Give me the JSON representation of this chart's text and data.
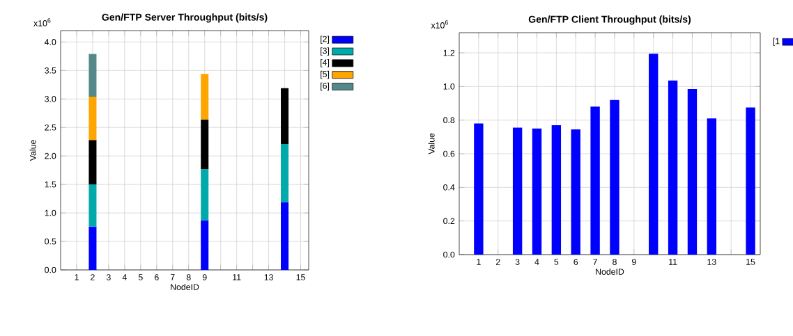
{
  "chart_data": [
    {
      "type": "bar",
      "title": "Gen/FTP Server   Throughput (bits/s)",
      "xlabel": "NodeID",
      "ylabel": "Value",
      "annotations": [
        "x10$^{6}$"
      ],
      "categories": [
        "1",
        "2",
        "3",
        "4",
        "5",
        "6",
        "7",
        "8",
        "9",
        null,
        "11",
        null,
        "13",
        null,
        "15"
      ],
      "stacked": true,
      "ylim": [
        0,
        4.2
      ],
      "yticks": [
        {
          "value": 0,
          "label": "0.0"
        },
        {
          "value": 0.5,
          "label": "0.5"
        },
        {
          "value": 1,
          "label": "1.0"
        },
        {
          "value": 1.5,
          "label": "1.5"
        },
        {
          "value": 2,
          "label": "2.0"
        },
        {
          "value": 2.5,
          "label": "2.5"
        },
        {
          "value": 3,
          "label": "3.0"
        },
        {
          "value": 3.5,
          "label": "3.5"
        },
        {
          "value": 4,
          "label": "4.0"
        }
      ],
      "grid": true,
      "legend": "right",
      "series": [
        {
          "name": "[2]",
          "color": "#0000ff",
          "values": [
            null,
            0.76,
            null,
            null,
            null,
            null,
            null,
            null,
            0.87,
            null,
            null,
            null,
            null,
            1.19,
            null
          ]
        },
        {
          "name": "[3]",
          "color": "#00aaaa",
          "values": [
            null,
            0.74,
            null,
            null,
            null,
            null,
            null,
            null,
            0.9,
            null,
            null,
            null,
            null,
            1.02,
            null
          ]
        },
        {
          "name": "[4]",
          "color": "#000000",
          "values": [
            null,
            0.78,
            null,
            null,
            null,
            null,
            null,
            null,
            0.87,
            null,
            null,
            null,
            null,
            0.98,
            null
          ]
        },
        {
          "name": "[5]",
          "color": "#ffa500",
          "values": [
            null,
            0.76,
            null,
            null,
            null,
            null,
            null,
            null,
            0.8,
            null,
            null,
            null,
            null,
            null,
            null
          ]
        },
        {
          "name": "[6]",
          "color": "#558888",
          "values": [
            null,
            0.75,
            null,
            null,
            null,
            null,
            null,
            null,
            null,
            null,
            null,
            null,
            null,
            null,
            null
          ]
        }
      ]
    },
    {
      "type": "bar",
      "title": "Gen/FTP Client   Throughput (bits/s)",
      "xlabel": "NodeID",
      "ylabel": "Value",
      "annotations": [
        "x10$^{6}$"
      ],
      "categories": [
        "1",
        "2",
        "3",
        "4",
        "5",
        "6",
        "7",
        "8",
        "9",
        null,
        "11",
        null,
        "13",
        null,
        "15"
      ],
      "ylim": [
        0,
        1.32
      ],
      "yticks": [
        {
          "value": 0,
          "label": "0.0"
        },
        {
          "value": 0.2,
          "label": "0.2"
        },
        {
          "value": 0.4,
          "label": "0.4"
        },
        {
          "value": 0.6,
          "label": "0.6"
        },
        {
          "value": 0.8,
          "label": "0.8"
        },
        {
          "value": 1,
          "label": "1.0"
        },
        {
          "value": 1.2,
          "label": "1.2"
        }
      ],
      "grid": true,
      "legend": "right",
      "series": [
        {
          "name": "[1",
          "color": "#0000ff",
          "values": [
            0.78,
            null,
            0.755,
            0.75,
            0.77,
            0.745,
            0.88,
            0.92,
            null,
            1.195,
            1.035,
            0.985,
            0.81,
            null,
            0.875
          ]
        }
      ]
    }
  ]
}
